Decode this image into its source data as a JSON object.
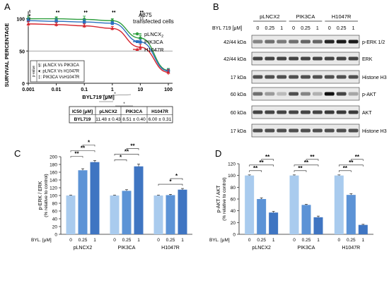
{
  "panels": {
    "a": "A",
    "b": "B",
    "c": "C",
    "d": "D"
  },
  "chart_data": [
    {
      "id": "A",
      "type": "line",
      "title": "A375\ntransfected cells",
      "xlabel": "BYL719 [μM]",
      "ylabel": "SURVIVAL PERCENTAGE",
      "xscale": "log",
      "xlim": [
        0.001,
        100
      ],
      "ylim": [
        0,
        105
      ],
      "xticks": [
        "0.001",
        "0.01",
        "0.1",
        "1",
        "10",
        "100"
      ],
      "yticks": [
        "0",
        "50",
        "100"
      ],
      "reference_line": 50,
      "legend": "right",
      "x": [
        0.001,
        0.01,
        0.1,
        1,
        10,
        100
      ],
      "series": [
        {
          "name": "pLNCX",
          "name_sub": "2",
          "color": "#2e9e3e",
          "marker": "circle",
          "values": [
            100,
            100,
            99,
            97,
            70,
            20
          ],
          "errors": [
            4,
            3,
            5,
            3,
            4,
            3
          ]
        },
        {
          "name": "PIK3CA",
          "color": "#2b6fbf",
          "marker": "square",
          "values": [
            97,
            96,
            95,
            93,
            64,
            19
          ],
          "errors": [
            4,
            4,
            4,
            3,
            4,
            3
          ]
        },
        {
          "name": "H1047R",
          "color": "#d6262e",
          "marker": "triangle",
          "values": [
            92,
            91,
            89,
            85,
            56,
            17
          ],
          "errors": [
            4,
            3,
            3,
            3,
            4,
            4
          ]
        }
      ],
      "markers_above": [
        {
          "x": 0.001,
          "symbols": [
            "§",
            "♦",
            "‡"
          ]
        },
        {
          "x": 0.01,
          "symbols": [
            "♦♦"
          ]
        },
        {
          "x": 0.1,
          "symbols": [
            "♦♦"
          ]
        },
        {
          "x": 1,
          "symbols": [
            "♦♦"
          ]
        },
        {
          "x": 10,
          "symbols": [
            "♦♦",
            "§§",
            "‡‡"
          ]
        }
      ],
      "pvalue_box": {
        "label": "p value",
        "rows": [
          "§: pLNCX Vs PIK3CA",
          "♦: pLNCX Vs H1047R",
          "‡: PIK3CA VsH1047R"
        ]
      },
      "significance": [
        "*",
        "*",
        "*"
      ],
      "ic50_table": {
        "headers": [
          "IC50 [μM]",
          "pLNCX2",
          "PIK3CA",
          "H1047R"
        ],
        "row": [
          "BYL719",
          "11.48 ± 0.43",
          "8.51 ± 0.40",
          "6.00 ± 0.31"
        ]
      }
    },
    {
      "id": "C",
      "type": "bar",
      "ylabel": "p-ERK / ERK",
      "ylabel2": "(% relative to control)",
      "ylim": [
        0,
        200
      ],
      "yticks": [
        "0",
        "20",
        "40",
        "60",
        "80",
        "100",
        "120",
        "140",
        "160",
        "180",
        "200"
      ],
      "dose_prefix": "BYL. [μM]",
      "dose_labels": [
        "0",
        "0.25",
        "1"
      ],
      "groups": [
        "pLNCX2",
        "PIK3CA",
        "H1047R"
      ],
      "colors": [
        "#a9cbee",
        "#5c93d6",
        "#3f75c2"
      ],
      "series": [
        {
          "values": [
            100,
            165,
            186
          ],
          "errors": [
            1,
            4,
            4
          ]
        },
        {
          "values": [
            100,
            112,
            175
          ],
          "errors": [
            1,
            3,
            6
          ]
        },
        {
          "values": [
            100,
            101,
            115
          ],
          "errors": [
            1,
            2,
            3
          ]
        }
      ],
      "significance": [
        {
          "group": 0,
          "from": 0,
          "to": 1,
          "level": 1,
          "label": "**"
        },
        {
          "group": 0,
          "from": 0,
          "to": 2,
          "level": 2,
          "label": "**"
        },
        {
          "group": 0,
          "from": 1,
          "to": 2,
          "level": 3,
          "label": "*"
        },
        {
          "group": 1,
          "from": 0,
          "to": 1,
          "level": 1,
          "label": "*"
        },
        {
          "group": 1,
          "from": 0,
          "to": 2,
          "level": 2,
          "label": "**"
        },
        {
          "group": 1,
          "from": 1,
          "to": 2,
          "level": 3,
          "label": "**"
        },
        {
          "group": 2,
          "from": 0,
          "to": 2,
          "level": 1,
          "label": "*"
        },
        {
          "group": 2,
          "from": 1,
          "to": 2,
          "level": 2,
          "label": "*"
        }
      ]
    },
    {
      "id": "D",
      "type": "bar",
      "ylabel": "p-AKT / AKT",
      "ylabel2": "(% relative to control)",
      "ylim": [
        0,
        120
      ],
      "yticks": [
        "0",
        "20",
        "40",
        "60",
        "80",
        "100",
        "120"
      ],
      "dose_prefix": "BYL. [μM]",
      "dose_labels": [
        "0",
        "0.25",
        "1"
      ],
      "groups": [
        "pLNCX2",
        "PIK3CA",
        "H1047R"
      ],
      "colors": [
        "#a9cbee",
        "#5c93d6",
        "#3f75c2"
      ],
      "series": [
        {
          "values": [
            100,
            60,
            37
          ],
          "errors": [
            1,
            2,
            2
          ]
        },
        {
          "values": [
            100,
            50,
            29
          ],
          "errors": [
            1,
            1,
            2
          ]
        },
        {
          "values": [
            100,
            67,
            16
          ],
          "errors": [
            1,
            2,
            1
          ]
        }
      ],
      "significance": [
        {
          "group": 0,
          "from": 0,
          "to": 1,
          "level": 1,
          "label": "**"
        },
        {
          "group": 0,
          "from": 0,
          "to": 2,
          "level": 2,
          "label": "**"
        },
        {
          "group": 0,
          "from": 1,
          "to": 2,
          "level": 3,
          "label": "**"
        },
        {
          "group": 1,
          "from": 0,
          "to": 1,
          "level": 1,
          "label": "**"
        },
        {
          "group": 1,
          "from": 0,
          "to": 2,
          "level": 2,
          "label": "**"
        },
        {
          "group": 1,
          "from": 1,
          "to": 2,
          "level": 3,
          "label": "**"
        },
        {
          "group": 2,
          "from": 0,
          "to": 1,
          "level": 1,
          "label": "**"
        },
        {
          "group": 2,
          "from": 0,
          "to": 2,
          "level": 2,
          "label": "**"
        },
        {
          "group": 2,
          "from": 1,
          "to": 2,
          "level": 3,
          "label": "**"
        }
      ]
    }
  ],
  "blot": {
    "groups": [
      "pLNCX2",
      "PIK3CA",
      "H1047R"
    ],
    "dose_label": "BYL 719 [μM]",
    "doses": [
      "0",
      "0.25",
      "1"
    ],
    "rows": [
      {
        "mw": "42/44 kDa",
        "label": "p-ERK 1/2",
        "intensity": [
          0.45,
          0.55,
          0.5,
          0.55,
          0.6,
          0.6,
          0.9,
          0.95,
          0.95
        ]
      },
      {
        "mw": "42/44 kDa",
        "label": "ERK",
        "intensity": [
          0.75,
          0.75,
          0.75,
          0.75,
          0.75,
          0.75,
          0.75,
          0.75,
          0.75
        ]
      },
      {
        "mw": "17 kDa",
        "label": "Histone H3",
        "intensity": [
          0.7,
          0.7,
          0.7,
          0.7,
          0.7,
          0.7,
          0.7,
          0.7,
          0.7
        ]
      },
      {
        "mw": "60 kDa",
        "label": "p-AKT",
        "intensity": [
          0.55,
          0.35,
          0.2,
          0.7,
          0.45,
          0.25,
          1.0,
          0.75,
          0.3
        ]
      },
      {
        "mw": "60 kDa",
        "label": "AKT",
        "intensity": [
          0.75,
          0.75,
          0.75,
          0.75,
          0.75,
          0.75,
          0.8,
          0.8,
          0.8
        ]
      },
      {
        "mw": "17 kDa",
        "label": "Histone H3",
        "intensity": [
          0.7,
          0.7,
          0.7,
          0.7,
          0.7,
          0.7,
          0.7,
          0.7,
          0.7
        ]
      }
    ]
  }
}
